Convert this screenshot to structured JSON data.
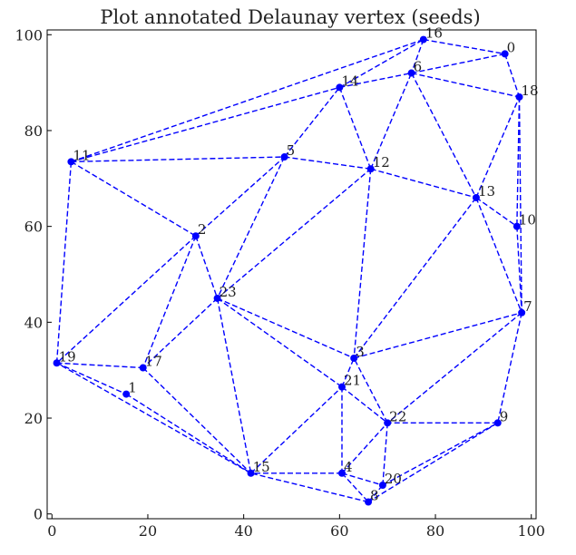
{
  "chart_data": {
    "type": "scatter",
    "title": "Plot annotated Delaunay vertex (seeds)",
    "xlabel": "",
    "ylabel": "",
    "xlim": [
      -1,
      101
    ],
    "ylim": [
      -1,
      101
    ],
    "x_ticks": [
      0,
      20,
      40,
      60,
      80,
      100
    ],
    "y_ticks": [
      0,
      20,
      40,
      60,
      80,
      100
    ],
    "grid": false,
    "colors": {
      "edge": "#0000ff",
      "point": "#0000ff",
      "frame": "#000000"
    },
    "points": [
      {
        "label": "0",
        "x": 94.5,
        "y": 96.0
      },
      {
        "label": "1",
        "x": 15.5,
        "y": 25.0
      },
      {
        "label": "2",
        "x": 30.0,
        "y": 58.0
      },
      {
        "label": "3",
        "x": 63.0,
        "y": 32.5
      },
      {
        "label": "4",
        "x": 60.5,
        "y": 8.5
      },
      {
        "label": "5",
        "x": 48.5,
        "y": 74.5
      },
      {
        "label": "6",
        "x": 75.0,
        "y": 92.0
      },
      {
        "label": "7",
        "x": 98.0,
        "y": 42.0
      },
      {
        "label": "8",
        "x": 66.0,
        "y": 2.5
      },
      {
        "label": "9",
        "x": 93.0,
        "y": 19.0
      },
      {
        "label": "10",
        "x": 97.0,
        "y": 60.0
      },
      {
        "label": "11",
        "x": 4.0,
        "y": 73.5
      },
      {
        "label": "12",
        "x": 66.5,
        "y": 72.0
      },
      {
        "label": "13",
        "x": 88.5,
        "y": 66.0
      },
      {
        "label": "14",
        "x": 60.0,
        "y": 89.0
      },
      {
        "label": "15",
        "x": 41.5,
        "y": 8.5
      },
      {
        "label": "16",
        "x": 77.5,
        "y": 99.0
      },
      {
        "label": "17",
        "x": 19.0,
        "y": 30.5
      },
      {
        "label": "18",
        "x": 97.5,
        "y": 87.0
      },
      {
        "label": "19",
        "x": 1.0,
        "y": 31.5
      },
      {
        "label": "20",
        "x": 69.0,
        "y": 6.0
      },
      {
        "label": "21",
        "x": 60.5,
        "y": 26.5
      },
      {
        "label": "22",
        "x": 70.0,
        "y": 19.0
      },
      {
        "label": "23",
        "x": 34.5,
        "y": 45.0
      }
    ],
    "edges": [
      [
        "16",
        "0"
      ],
      [
        "0",
        "18"
      ],
      [
        "18",
        "10"
      ],
      [
        "10",
        "7"
      ],
      [
        "18",
        "7"
      ],
      [
        "7",
        "9"
      ],
      [
        "9",
        "8"
      ],
      [
        "8",
        "15"
      ],
      [
        "15",
        "19"
      ],
      [
        "19",
        "11"
      ],
      [
        "11",
        "16"
      ],
      [
        "11",
        "14"
      ],
      [
        "14",
        "16"
      ],
      [
        "16",
        "6"
      ],
      [
        "6",
        "0"
      ],
      [
        "6",
        "18"
      ],
      [
        "14",
        "6"
      ],
      [
        "14",
        "12"
      ],
      [
        "12",
        "6"
      ],
      [
        "6",
        "13"
      ],
      [
        "13",
        "18"
      ],
      [
        "13",
        "10"
      ],
      [
        "13",
        "7"
      ],
      [
        "12",
        "13"
      ],
      [
        "11",
        "5"
      ],
      [
        "5",
        "14"
      ],
      [
        "5",
        "12"
      ],
      [
        "11",
        "2"
      ],
      [
        "2",
        "5"
      ],
      [
        "2",
        "19"
      ],
      [
        "2",
        "17"
      ],
      [
        "2",
        "23"
      ],
      [
        "5",
        "23"
      ],
      [
        "23",
        "12"
      ],
      [
        "12",
        "3"
      ],
      [
        "3",
        "13"
      ],
      [
        "3",
        "7"
      ],
      [
        "7",
        "22"
      ],
      [
        "22",
        "3"
      ],
      [
        "23",
        "3"
      ],
      [
        "23",
        "21"
      ],
      [
        "21",
        "3"
      ],
      [
        "21",
        "22"
      ],
      [
        "23",
        "17"
      ],
      [
        "23",
        "15"
      ],
      [
        "15",
        "21"
      ],
      [
        "21",
        "4"
      ],
      [
        "4",
        "15"
      ],
      [
        "4",
        "22"
      ],
      [
        "22",
        "20"
      ],
      [
        "20",
        "9"
      ],
      [
        "9",
        "22"
      ],
      [
        "4",
        "20"
      ],
      [
        "4",
        "8"
      ],
      [
        "8",
        "20"
      ],
      [
        "19",
        "17"
      ],
      [
        "17",
        "15"
      ],
      [
        "19",
        "1"
      ],
      [
        "1",
        "15"
      ]
    ]
  }
}
